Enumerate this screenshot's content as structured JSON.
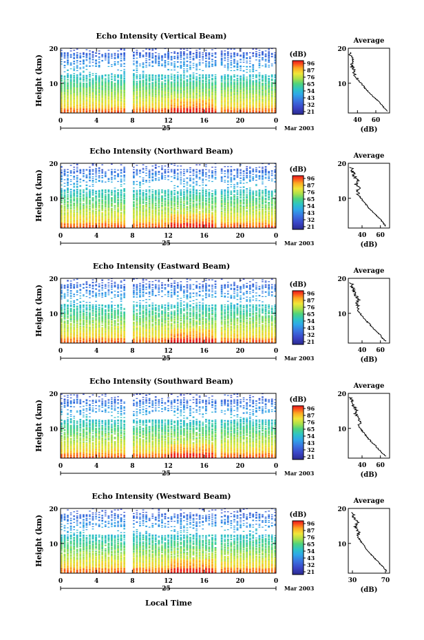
{
  "figure": {
    "xlabel": "Local Time",
    "date_label": "Mar 2003",
    "day_label": "25",
    "colorbar_unit": "(dB)",
    "colorbar_ticks": [
      "96",
      "87",
      "76",
      "65",
      "54",
      "43",
      "32",
      "21"
    ],
    "colorbar_colors": [
      "#e8141c",
      "#fb5a1c",
      "#fcaa23",
      "#f0e639",
      "#a8e04a",
      "#4fd37d",
      "#2ec4c4",
      "#2fa7e8",
      "#3a73e0",
      "#3a44c6",
      "#2b2a8f"
    ],
    "average_title": "Average",
    "average_xlabel": "(dB)",
    "ylabel": "Height (km)"
  },
  "chart_data": [
    {
      "type": "heatmap",
      "title": "Echo Intensity (Vertical Beam)",
      "xlabel": "",
      "ylabel": "Height (km)",
      "xlim": [
        0,
        24
      ],
      "ylim": [
        1.5,
        20
      ],
      "x_ticks": [
        "0",
        "4",
        "8",
        "12",
        "16",
        "20",
        "0"
      ],
      "y_ticks": [
        "10",
        "20"
      ],
      "color_range_db": [
        21,
        96
      ],
      "data_gaps_hours": [
        7.6,
        17.6
      ],
      "average_profile": {
        "x_ticks": [
          "40",
          "60"
        ],
        "xlim": [
          30,
          75
        ],
        "height_km": [
          2,
          3,
          4,
          5,
          6,
          7,
          8,
          9,
          10,
          11,
          12,
          13,
          14,
          15,
          16,
          17,
          18,
          19
        ],
        "db": [
          73,
          69,
          66,
          62,
          58,
          54,
          50,
          47,
          44,
          40,
          38,
          36,
          36,
          33,
          34,
          36,
          32,
          31
        ]
      }
    },
    {
      "type": "heatmap",
      "title": "Echo Intensity (Northward Beam)",
      "xlabel": "",
      "ylabel": "Height (km)",
      "xlim": [
        0,
        24
      ],
      "ylim": [
        1.5,
        20
      ],
      "x_ticks": [
        "0",
        "4",
        "8",
        "12",
        "16",
        "20",
        "0"
      ],
      "y_ticks": [
        "10",
        "20"
      ],
      "color_range_db": [
        21,
        96
      ],
      "data_gaps_hours": [
        7.6,
        17.6
      ],
      "average_profile": {
        "x_ticks": [
          "40",
          "60"
        ],
        "xlim": [
          25,
          70
        ],
        "height_km": [
          2,
          3,
          4,
          5,
          6,
          7,
          8,
          9,
          10,
          11,
          12,
          13,
          14,
          15,
          16,
          17,
          18,
          19
        ],
        "db": [
          66,
          63,
          60,
          56,
          52,
          48,
          45,
          42,
          39,
          36,
          35,
          37,
          33,
          35,
          32,
          31,
          29,
          28
        ]
      }
    },
    {
      "type": "heatmap",
      "title": "Echo Intensity (Eastward Beam)",
      "xlabel": "",
      "ylabel": "Height (km)",
      "xlim": [
        0,
        24
      ],
      "ylim": [
        1.5,
        20
      ],
      "x_ticks": [
        "0",
        "4",
        "8",
        "12",
        "16",
        "20",
        "0"
      ],
      "y_ticks": [
        "10",
        "20"
      ],
      "color_range_db": [
        21,
        96
      ],
      "data_gaps_hours": [
        7.6,
        17.6
      ],
      "average_profile": {
        "x_ticks": [
          "40",
          "60"
        ],
        "xlim": [
          25,
          70
        ],
        "height_km": [
          2,
          3,
          4,
          5,
          6,
          7,
          8,
          9,
          10,
          11,
          12,
          13,
          14,
          15,
          16,
          17,
          18,
          19
        ],
        "db": [
          66,
          62,
          59,
          55,
          51,
          48,
          44,
          41,
          38,
          35,
          36,
          34,
          37,
          33,
          32,
          30,
          29,
          28
        ]
      }
    },
    {
      "type": "heatmap",
      "title": "Echo Intensity (Southward Beam)",
      "xlabel": "",
      "ylabel": "Height (km)",
      "xlim": [
        0,
        24
      ],
      "ylim": [
        1.5,
        20
      ],
      "x_ticks": [
        "0",
        "4",
        "8",
        "12",
        "16",
        "20",
        "0"
      ],
      "y_ticks": [
        "10",
        "20"
      ],
      "color_range_db": [
        21,
        96
      ],
      "data_gaps_hours": [
        7.6,
        17.6
      ],
      "average_profile": {
        "x_ticks": [
          "40",
          "60"
        ],
        "xlim": [
          25,
          70
        ],
        "height_km": [
          2,
          3,
          4,
          5,
          6,
          7,
          8,
          9,
          10,
          11,
          12,
          13,
          14,
          15,
          16,
          17,
          18,
          19
        ],
        "db": [
          66,
          62,
          58,
          55,
          51,
          47,
          44,
          41,
          38,
          36,
          39,
          35,
          33,
          34,
          32,
          30,
          29,
          27
        ]
      }
    },
    {
      "type": "heatmap",
      "title": "Echo Intensity (Westward Beam)",
      "xlabel": "Local Time",
      "ylabel": "Height (km)",
      "xlim": [
        0,
        24
      ],
      "ylim": [
        1.5,
        20
      ],
      "x_ticks": [
        "0",
        "4",
        "8",
        "12",
        "16",
        "20",
        "0"
      ],
      "y_ticks": [
        "10",
        "20"
      ],
      "color_range_db": [
        21,
        96
      ],
      "data_gaps_hours": [
        7.6,
        17.6
      ],
      "average_profile": {
        "x_ticks": [
          "30",
          "70"
        ],
        "xlim": [
          25,
          75
        ],
        "height_km": [
          2,
          3,
          4,
          5,
          6,
          7,
          8,
          9,
          10,
          11,
          12,
          13,
          14,
          15,
          16,
          17,
          18,
          19
        ],
        "db": [
          72,
          68,
          64,
          60,
          56,
          52,
          48,
          45,
          42,
          39,
          37,
          38,
          35,
          34,
          36,
          33,
          31,
          30
        ]
      }
    }
  ]
}
